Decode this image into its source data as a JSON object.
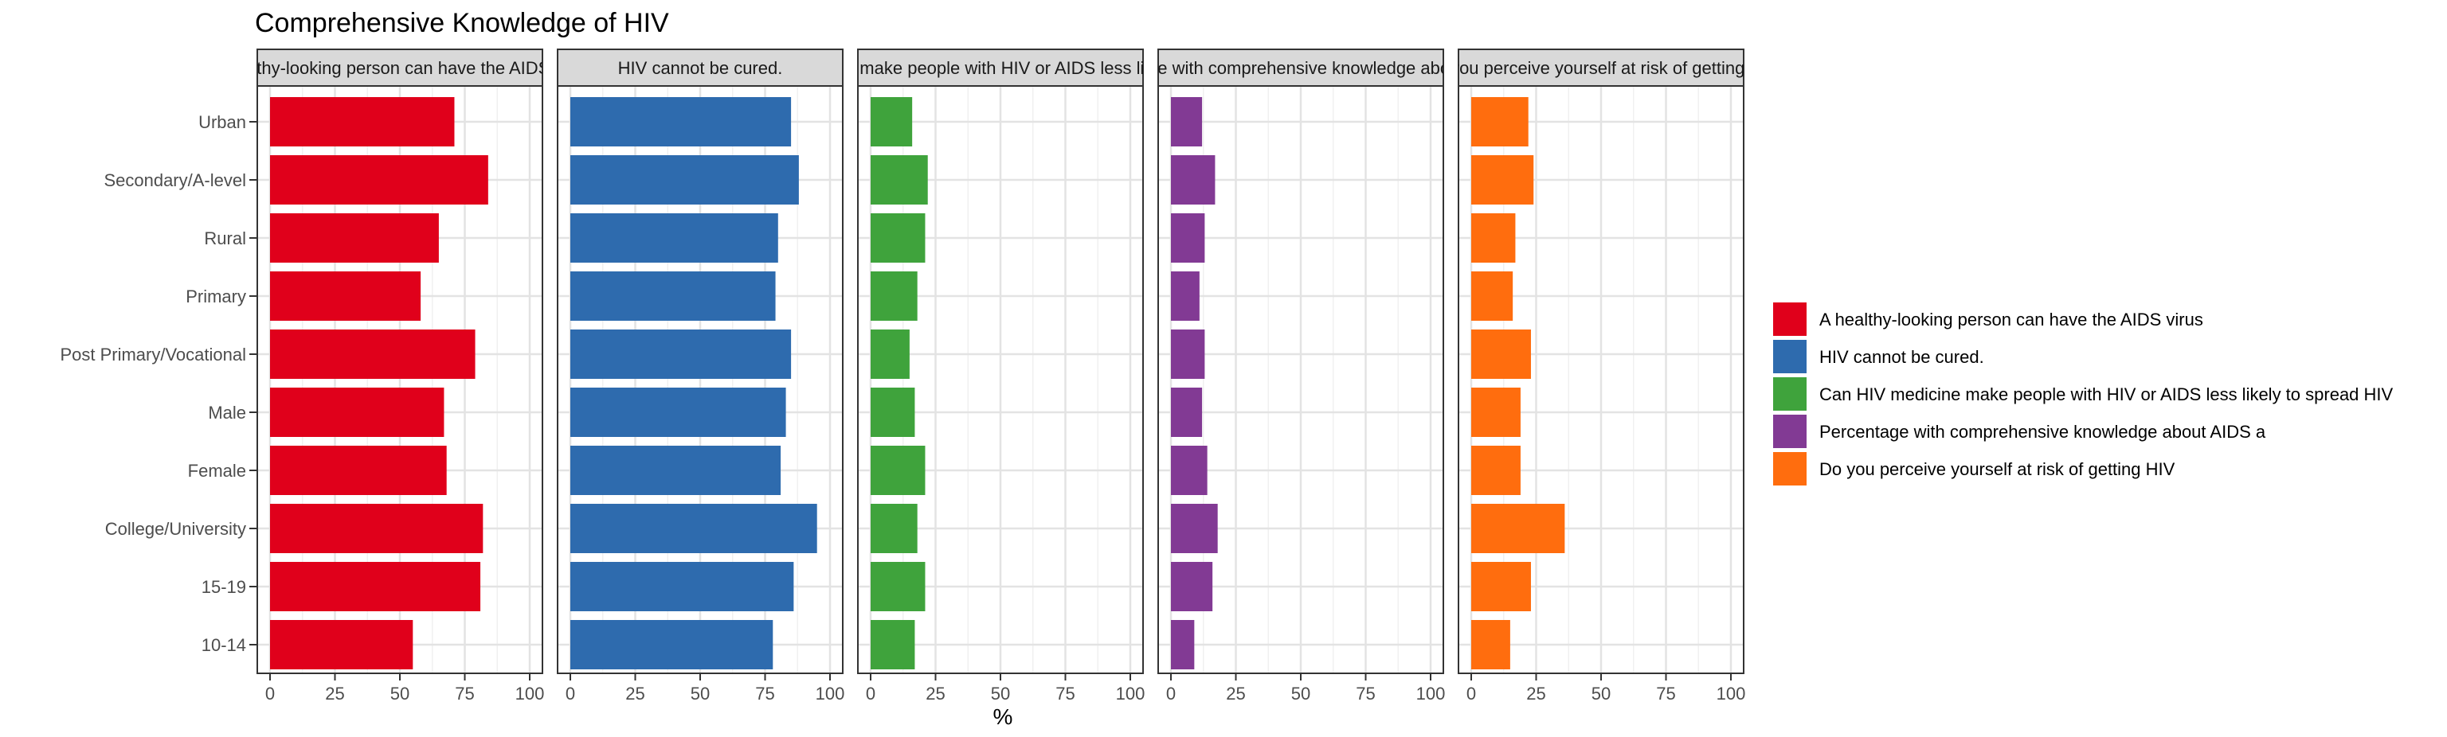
{
  "chart_data": {
    "type": "bar",
    "orientation": "horizontal",
    "layout": "faceted",
    "title": "Comprehensive Knowledge of HIV",
    "xlabel": "%",
    "ylabel": "",
    "xlim": [
      0,
      100
    ],
    "x_ticks": [
      "0",
      "25",
      "50",
      "75",
      "100"
    ],
    "grid": true,
    "legend_position": "right",
    "categories": [
      "Urban",
      "Secondary/A-level",
      "Rural",
      "Primary",
      "Post Primary/Vocational",
      "Male",
      "Female",
      "College/University",
      "15-19",
      "10-14"
    ],
    "facets": [
      {
        "strip_label": "A healthy-looking person can have the AIDS virus",
        "legend_label": "A healthy-looking person can have the AIDS virus",
        "color": "#E0001B",
        "values": [
          71,
          84,
          65,
          58,
          79,
          67,
          68,
          82,
          81,
          55
        ]
      },
      {
        "strip_label": "HIV cannot be cured.",
        "legend_label": "HIV cannot be cured.",
        "color": "#2E6BAE",
        "values": [
          85,
          88,
          80,
          79,
          85,
          83,
          81,
          95,
          86,
          78
        ]
      },
      {
        "strip_label": "Can HIV medicine make people with HIV or AIDS less likely to spread HIV",
        "legend_label": "Can HIV medicine make people with HIV or AIDS less likely to spread HIV",
        "color": "#3FA33C",
        "values": [
          16,
          22,
          21,
          18,
          15,
          17,
          21,
          18,
          21,
          17
        ]
      },
      {
        "strip_label": "Percentage with comprehensive knowledge about AIDS a",
        "legend_label": "Percentage with comprehensive knowledge about AIDS a",
        "color": "#823A94",
        "values": [
          12,
          17,
          13,
          11,
          13,
          12,
          14,
          18,
          16,
          9
        ]
      },
      {
        "strip_label": "Do you perceive yourself at risk of getting HIV",
        "legend_label": "Do you perceive yourself at risk of getting HIV",
        "color": "#FF6D0E",
        "values": [
          22,
          24,
          17,
          16,
          23,
          19,
          19,
          36,
          23,
          15
        ]
      }
    ]
  }
}
